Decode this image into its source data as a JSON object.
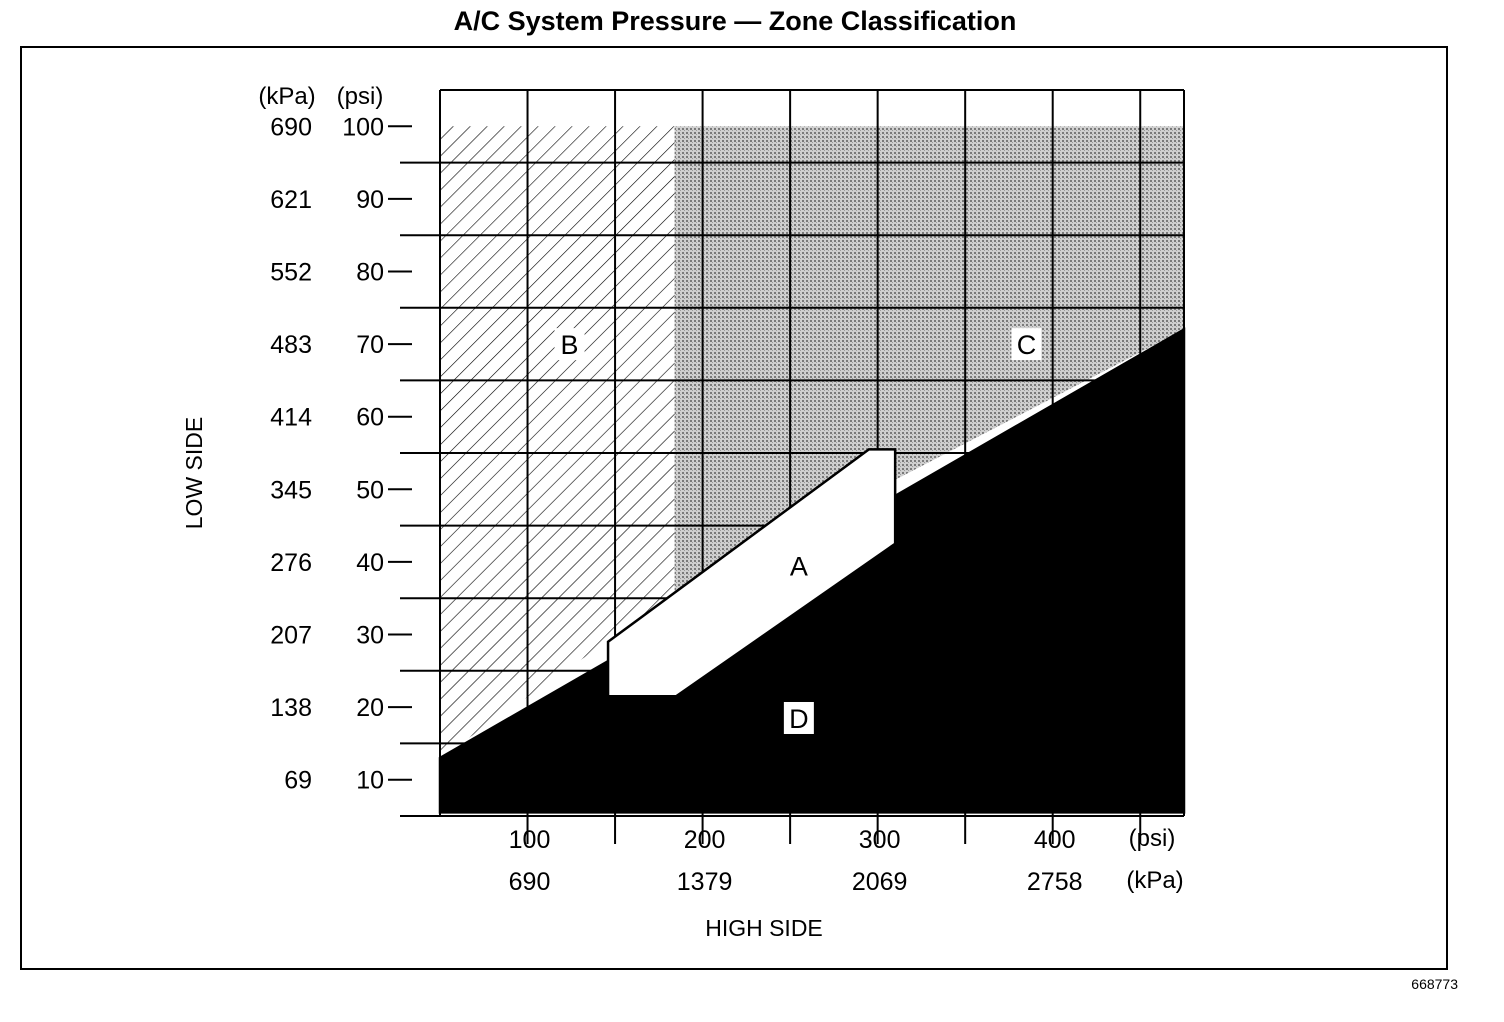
{
  "title": "A/C System Pressure — Zone Classification",
  "document_number": "668773",
  "colors": {
    "ink": "#000000",
    "paper": "#ffffff",
    "zone_c_shade": "#b9b9b9"
  },
  "chart_data": {
    "type": "area",
    "title": "A/C System Pressure — Zone Classification",
    "xlabel": "HIGH SIDE",
    "ylabel": "LOW SIDE",
    "x_units": [
      "(psi)",
      "(kPa)"
    ],
    "y_units": [
      "(kPa)",
      "(psi)"
    ],
    "xlim": [
      50,
      475
    ],
    "ylim": [
      5,
      105
    ],
    "x_ticks_psi": [
      "100",
      "200",
      "300",
      "400"
    ],
    "x_ticks_kpa": [
      "690",
      "1379",
      "2069",
      "2758"
    ],
    "y_ticks_psi": [
      "100",
      "90",
      "80",
      "70",
      "60",
      "50",
      "40",
      "30",
      "20",
      "10"
    ],
    "y_ticks_kpa": [
      "690",
      "621",
      "552",
      "483",
      "414",
      "345",
      "276",
      "207",
      "138",
      "69"
    ],
    "grid": true,
    "zones": [
      {
        "label": "A",
        "description_fill": "white",
        "polygon": [
          [
            146,
            29
          ],
          [
            146,
            21.5
          ],
          [
            185,
            21.5
          ],
          [
            310,
            42.5
          ],
          [
            310,
            55.5
          ],
          [
            295,
            55.5
          ]
        ]
      },
      {
        "label": "B",
        "description_fill": "diagonal-hatch",
        "polygon": [
          [
            50,
            100
          ],
          [
            184,
            100
          ],
          [
            184,
            35.5
          ],
          [
            50,
            13
          ]
        ]
      },
      {
        "label": "C",
        "description_fill": "shaded",
        "polygon": [
          [
            184,
            100
          ],
          [
            475,
            100
          ],
          [
            475,
            72
          ],
          [
            184,
            35.5
          ]
        ]
      },
      {
        "label": "D",
        "description_fill": "black",
        "polygon": [
          [
            50,
            13
          ],
          [
            475,
            72
          ],
          [
            475,
            5.5
          ],
          [
            50,
            5.5
          ]
        ]
      }
    ],
    "zone_labels": [
      {
        "label": "B",
        "x": 124,
        "y": 70
      },
      {
        "label": "C",
        "x": 385,
        "y": 70
      },
      {
        "label": "A",
        "x": 255,
        "y": 39.5
      },
      {
        "label": "D",
        "x": 255,
        "y": 18.5
      }
    ]
  }
}
